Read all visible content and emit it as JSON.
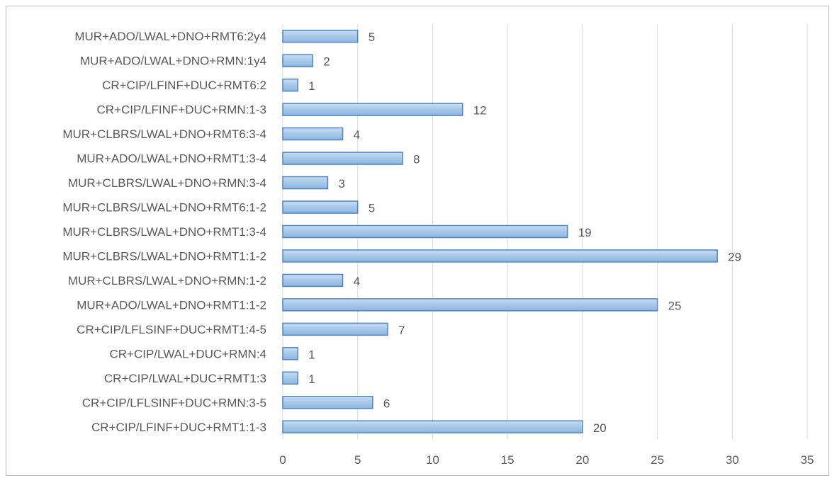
{
  "chart_data": {
    "type": "bar",
    "orientation": "horizontal",
    "categories": [
      "MUR+ADO/LWAL+DNO+RMT6:2y4",
      "MUR+ADO/LWAL+DNO+RMN:1y4",
      "CR+CIP/LFINF+DUC+RMT6:2",
      "CR+CIP/LFINF+DUC+RMN:1-3",
      "MUR+CLBRS/LWAL+DNO+RMT6:3-4",
      "MUR+ADO/LWAL+DNO+RMT1:3-4",
      "MUR+CLBRS/LWAL+DNO+RMN:3-4",
      "MUR+CLBRS/LWAL+DNO+RMT6:1-2",
      "MUR+CLBRS/LWAL+DNO+RMT1:3-4",
      "MUR+CLBRS/LWAL+DNO+RMT1:1-2",
      "MUR+CLBRS/LWAL+DNO+RMN:1-2",
      "MUR+ADO/LWAL+DNO+RMT1:1-2",
      "CR+CIP/LFLSINF+DUC+RMT1:4-5",
      "CR+CIP/LWAL+DUC+RMN:4",
      "CR+CIP/LWAL+DUC+RMT1:3",
      "CR+CIP/LFLSINF+DUC+RMN:3-5",
      "CR+CIP/LFINF+DUC+RMT1:1-3"
    ],
    "values": [
      5,
      2,
      1,
      12,
      4,
      8,
      3,
      5,
      19,
      29,
      4,
      25,
      7,
      1,
      1,
      6,
      20
    ],
    "xlim": [
      0,
      35
    ],
    "xticks": [
      0,
      5,
      10,
      15,
      20,
      25,
      30,
      35
    ],
    "xtick_labels": [
      "0",
      "5",
      "10",
      "15",
      "20",
      "25",
      "30",
      "35"
    ],
    "data_labels": true,
    "grid": "vertical",
    "legend": "none",
    "bar_color": "#9dc3e6",
    "bar_edge_color": "#4f86c6"
  }
}
